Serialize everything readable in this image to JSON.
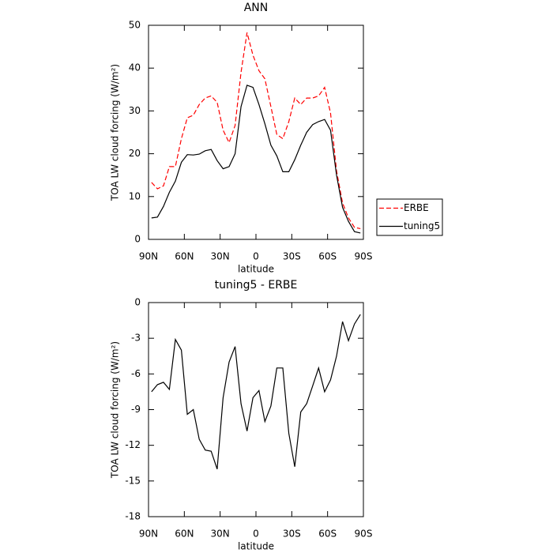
{
  "chart_data": [
    {
      "type": "line",
      "title": "ANN",
      "x_label": "latitude",
      "y_label": "TOA LW cloud forcing (W/m²)",
      "x": [
        87.5,
        82.5,
        77.5,
        72.5,
        67.5,
        62.5,
        57.5,
        52.5,
        47.5,
        42.5,
        37.5,
        32.5,
        27.5,
        22.5,
        17.5,
        12.5,
        7.5,
        2.5,
        -2.5,
        -7.5,
        -12.5,
        -17.5,
        -22.5,
        -27.5,
        -32.5,
        -37.5,
        -42.5,
        -47.5,
        -52.5,
        -57.5,
        -62.5,
        -67.5,
        -72.5,
        -77.5,
        -82.5,
        -87.5
      ],
      "xlim": [
        90,
        -90
      ],
      "xticks": [
        {
          "value": 90,
          "label": "90N"
        },
        {
          "value": 60,
          "label": "60N"
        },
        {
          "value": 30,
          "label": "30N"
        },
        0,
        {
          "value": -30,
          "label": "30S"
        },
        {
          "value": -60,
          "label": "60S"
        },
        {
          "value": -90,
          "label": "90S"
        }
      ],
      "ylim": [
        0,
        50
      ],
      "yticks": [
        0,
        10,
        20,
        30,
        40,
        50
      ],
      "legend": "outside-right",
      "series": [
        {
          "name": "ERBE",
          "color": "#ff0000",
          "line_style": "dashed",
          "values": [
            13.3,
            11.8,
            12.5,
            17,
            17,
            23.5,
            28.4,
            29,
            31.5,
            33,
            33.5,
            32,
            25.5,
            22.6,
            26.6,
            39,
            48.3,
            43,
            39.4,
            37.5,
            31,
            24.5,
            23.5,
            27.5,
            33,
            31.5,
            33,
            33,
            33.5,
            35.5,
            29.5,
            16,
            8.5,
            5,
            2.8,
            2.5
          ]
        },
        {
          "name": "tuning5",
          "color": "#000000",
          "line_style": "solid",
          "values": [
            5,
            5.2,
            7.7,
            11,
            13.6,
            18,
            19.8,
            19.7,
            19.9,
            20.7,
            21,
            18.4,
            16.5,
            17,
            20,
            31,
            36,
            35.5,
            31.5,
            27,
            22,
            19.5,
            15.8,
            15.8,
            18.6,
            22,
            25,
            26.8,
            27.5,
            28,
            25.5,
            15,
            7.5,
            4.2,
            1.8,
            1.5
          ]
        }
      ]
    },
    {
      "type": "line",
      "title": "tuning5 - ERBE",
      "x_label": "latitude",
      "y_label": "TOA LW cloud forcing (W/m²)",
      "x": [
        87.5,
        82.5,
        77.5,
        72.5,
        67.5,
        62.5,
        57.5,
        52.5,
        47.5,
        42.5,
        37.5,
        32.5,
        27.5,
        22.5,
        17.5,
        12.5,
        7.5,
        2.5,
        -2.5,
        -7.5,
        -12.5,
        -17.5,
        -22.5,
        -27.5,
        -32.5,
        -37.5,
        -42.5,
        -47.5,
        -52.5,
        -57.5,
        -62.5,
        -67.5,
        -72.5,
        -77.5,
        -82.5,
        -87.5
      ],
      "xlim": [
        90,
        -90
      ],
      "xticks": [
        {
          "value": 90,
          "label": "90N"
        },
        {
          "value": 60,
          "label": "60N"
        },
        {
          "value": 30,
          "label": "30N"
        },
        0,
        {
          "value": -30,
          "label": "30S"
        },
        {
          "value": -60,
          "label": "60S"
        },
        {
          "value": -90,
          "label": "90S"
        }
      ],
      "ylim": [
        -18,
        0
      ],
      "yticks": [
        -18,
        -15,
        -12,
        -9,
        -6,
        -3,
        0
      ],
      "color": "#000000",
      "values": [
        -7.5,
        -6.9,
        -6.7,
        -7.3,
        -3.1,
        -4,
        -9.4,
        -9,
        -11.5,
        -12.4,
        -12.5,
        -14,
        -8,
        -5,
        -3.7,
        -8.5,
        -10.8,
        -8,
        -7.4,
        -10,
        -8.7,
        -5.5,
        -5.5,
        -11,
        -13.8,
        -9.2,
        -8.5,
        -7,
        -5.5,
        -7.5,
        -6.5,
        -4.5,
        -1.6,
        -3.2,
        -1.8,
        -1
      ]
    }
  ]
}
